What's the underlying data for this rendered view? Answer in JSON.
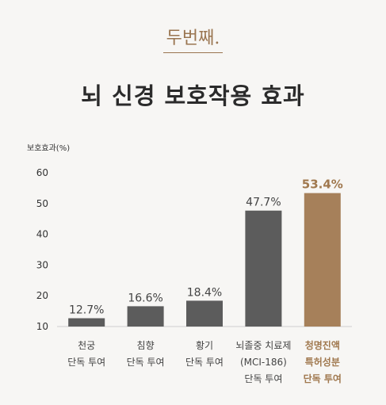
{
  "header": {
    "badge": "두번째.",
    "title": "뇌 신경 보호작용 효과"
  },
  "chart_data": {
    "type": "bar",
    "title": "",
    "ylabel": "보호효과(%)",
    "xlabel": "",
    "ylim": [
      10,
      60
    ],
    "yticks": [
      60,
      50,
      40,
      30,
      20,
      10
    ],
    "grid": false,
    "categories": [
      [
        "천궁",
        "단독 투여"
      ],
      [
        "침향",
        "단독 투여"
      ],
      [
        "황기",
        "단독 투여"
      ],
      [
        "뇌졸중 치료제",
        "(MCI-186)",
        "단독 투여"
      ],
      [
        "청명진액",
        "특허성분",
        "단독 투여"
      ]
    ],
    "values": [
      12.7,
      16.6,
      18.4,
      47.7,
      53.4
    ],
    "value_labels": [
      "12.7%",
      "16.6%",
      "18.4%",
      "47.7%",
      "53.4%"
    ],
    "highlight_index": 4,
    "colors": {
      "bar": "#5c5c5c",
      "highlight": "#a6805a",
      "highlight_text": "#a0784e"
    }
  }
}
